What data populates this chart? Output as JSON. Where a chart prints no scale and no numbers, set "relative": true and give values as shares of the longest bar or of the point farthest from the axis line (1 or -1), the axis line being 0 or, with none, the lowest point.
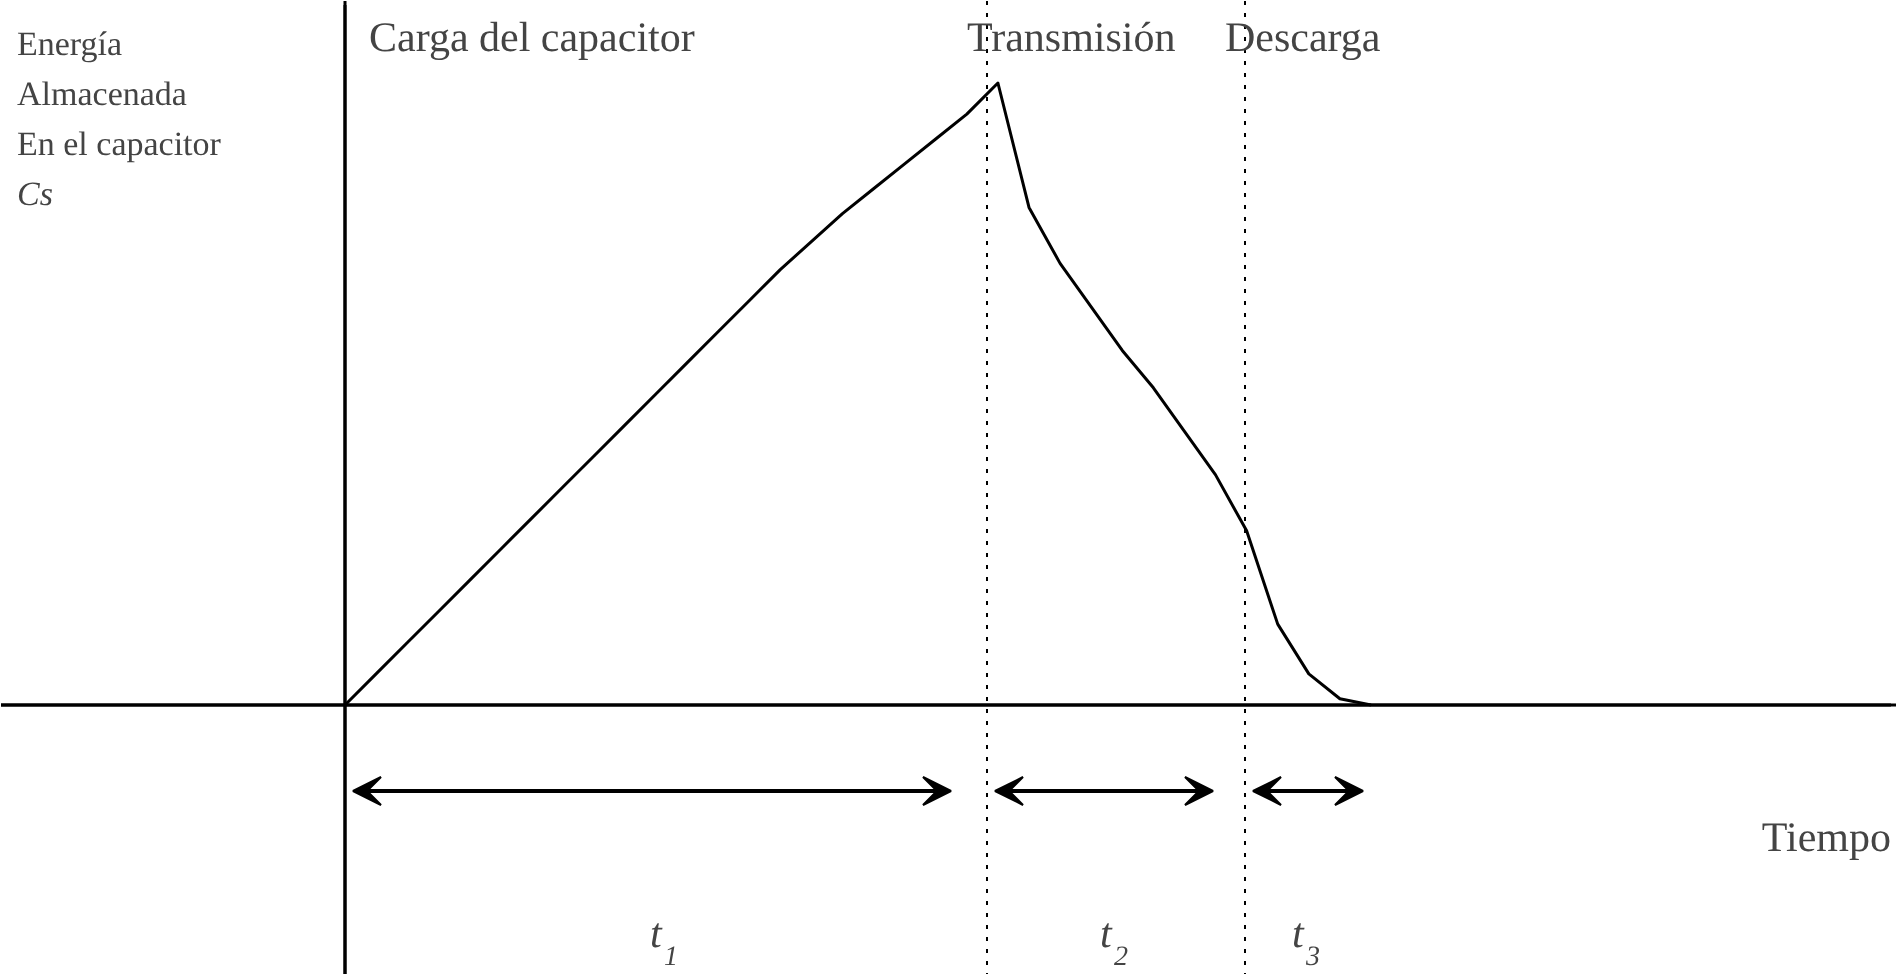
{
  "chart_data": {
    "type": "line",
    "relative": true,
    "categories": [
      null,
      null,
      null,
      null,
      null,
      null,
      null,
      null,
      null,
      null,
      null,
      null,
      null,
      null,
      null,
      null,
      null,
      null,
      null,
      null,
      null,
      null,
      null,
      null,
      null,
      null,
      null,
      null,
      null,
      null,
      null,
      null,
      null,
      null
    ],
    "series": [
      {
        "color": "#000000",
        "values": [
          0,
          0.05,
          0.1,
          0.15,
          0.2,
          0.25,
          0.3,
          0.35,
          0.4,
          0.45,
          0.5,
          0.55,
          0.6,
          0.65,
          0.7,
          0.745,
          0.79,
          0.83,
          0.87,
          0.91,
          0.95,
          1,
          0.8,
          0.71,
          0.64,
          0.57,
          0.51,
          0.44,
          0.37,
          0.28,
          0.13,
          0.05,
          0.01,
          0
        ]
      }
    ],
    "ylabel": "Energía\nAlmacenada\nEn el capacitor\nCs",
    "annotations": [
      "Carga del capacitor",
      "Transmisión",
      "Descarga",
      "t$_{1}$",
      "t$_{2}$",
      "t$_{3}$",
      "Tiempo"
    ],
    "marker": "none",
    "line_style": "solid",
    "grid": false,
    "legend": false
  }
}
